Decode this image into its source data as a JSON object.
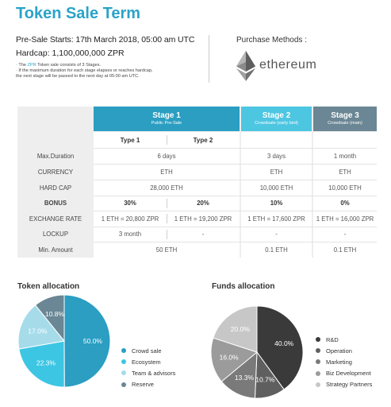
{
  "title": "Token Sale Term",
  "presale": "Pre-Sale Starts: 17th March 2018, 05:00 am UTC",
  "hardcap": "Hardcap: 1,100,000,000 ZPR",
  "notes": [
    {
      "prefix": "· The ",
      "highlight": "ZPR",
      "rest": " Token sale consists of 3 Stages."
    },
    {
      "prefix": "· If the maximum duration for each stage elapses or reaches hardcap,",
      "highlight": "",
      "rest": ""
    },
    {
      "prefix": "  the next stage will be passed to the next day at 05:00 am UTC.",
      "highlight": "",
      "rest": ""
    }
  ],
  "purchase_methods": {
    "title": "Purchase Methods :",
    "logo_text": "ethereum",
    "icon": "ethereum-icon"
  },
  "colors": {
    "accent": "#2aa3c8",
    "stage1": "#2b9ec2",
    "stage2": "#4dc6e2",
    "stage3": "#6b8694"
  },
  "table": {
    "stages": [
      {
        "name": "Stage 1",
        "sub": "Public Pre-Sale"
      },
      {
        "name": "Stage 2",
        "sub": "Crowdsale (early bird)"
      },
      {
        "name": "Stage 3",
        "sub": "Crowdsale (main)"
      }
    ],
    "types": [
      "Type 1",
      "Type 2"
    ],
    "rows": [
      {
        "label": "Max.Duration",
        "s1": "6 days",
        "s2": "3 days",
        "s3": "1 month"
      },
      {
        "label": "CURRENCY",
        "s1": "ETH",
        "s2": "ETH",
        "s3": "ETH"
      },
      {
        "label": "HARD CAP",
        "s1": "28,000 ETH",
        "s2": "10,000 ETH",
        "s3": "10,000 ETH"
      },
      {
        "label": "BONUS",
        "t1": "30%",
        "t2": "20%",
        "s2": "10%",
        "s3": "0%"
      },
      {
        "label": "EXCHANGE RATE",
        "t1": "1 ETH = 20,800 ZPR",
        "t2": "1 ETH = 19,200 ZPR",
        "s2": "1 ETH = 17,600 ZPR",
        "s3": "1 ETH = 16,000 ZPR"
      },
      {
        "label": "LOCKUP",
        "t1": "3 month",
        "t2": "-",
        "s2": "-",
        "s3": "-"
      },
      {
        "label": "Min. Amount",
        "s1": "50 ETH",
        "s2": "0.1 ETH",
        "s3": "0.1 ETH"
      }
    ]
  },
  "chart_data": [
    {
      "type": "pie",
      "title": "Token allocation",
      "categories": [
        "Crowd sale",
        "Ecosystem",
        "Team & advisors",
        "Reserve"
      ],
      "values": [
        50.0,
        22.3,
        17.0,
        10.8
      ],
      "labels": [
        "50.0%",
        "22.3%",
        "17.0%",
        "10.8%"
      ],
      "colors": [
        "#2b9ec2",
        "#3cc6e4",
        "#a6dcea",
        "#6b8694"
      ],
      "legend": "right"
    },
    {
      "type": "pie",
      "title": "Funds allocation",
      "categories": [
        "R&D",
        "Operation",
        "Marketing",
        "Biz Development",
        "Strategy Partners"
      ],
      "values": [
        40.0,
        10.7,
        13.3,
        16.0,
        20.0
      ],
      "labels": [
        "40.0%",
        "10.7%",
        "13.3%",
        "16.0%",
        "20.0%"
      ],
      "colors": [
        "#3a3a3a",
        "#5f5f5f",
        "#7a7a7a",
        "#9b9b9b",
        "#c7c7c7"
      ],
      "legend": "right"
    }
  ]
}
